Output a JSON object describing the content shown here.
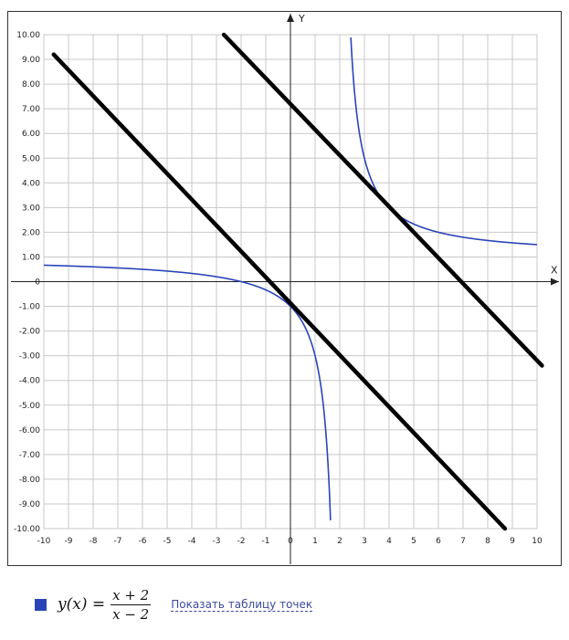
{
  "chart_data": {
    "type": "line",
    "xlabel": "X",
    "ylabel": "Y",
    "xlim": [
      -10,
      10
    ],
    "ylim": [
      -10,
      10
    ],
    "grid": true,
    "x_ticks": [
      "-10",
      "-9",
      "-8",
      "-7",
      "-6",
      "-5",
      "-4",
      "-3",
      "-2",
      "-1",
      "0",
      "1",
      "2",
      "3",
      "4",
      "5",
      "6",
      "7",
      "8",
      "9",
      "10"
    ],
    "y_ticks": [
      "10.00",
      "9.00",
      "8.00",
      "7.00",
      "6.00",
      "5.00",
      "4.00",
      "3.00",
      "2.00",
      "1.00",
      "0",
      "-1.00",
      "-2.00",
      "-3.00",
      "-4.00",
      "-5.00",
      "-6.00",
      "-7.00",
      "-8.00",
      "-9.00",
      "-10.00"
    ],
    "series": [
      {
        "name": "y(x) = (x + 2)/(x - 2)",
        "kind": "function",
        "expression": "(x+2)/(x-2)",
        "asymptote_x": 2,
        "color": "#2a44b8"
      },
      {
        "kind": "hand-drawn line",
        "points": [
          [
            -9.6,
            9.2
          ],
          [
            8.7,
            -10.0
          ]
        ],
        "color": "#000000"
      },
      {
        "kind": "hand-drawn line",
        "points": [
          [
            -2.7,
            10.0
          ],
          [
            10.2,
            -3.4
          ]
        ],
        "color": "#000000"
      }
    ]
  },
  "legend": {
    "swatch_color": "#2a44b8",
    "formula_lhs": "y(x) =",
    "formula_numerator": "x + 2",
    "formula_denominator": "x − 2",
    "link_label": "Показать таблицу точек"
  }
}
